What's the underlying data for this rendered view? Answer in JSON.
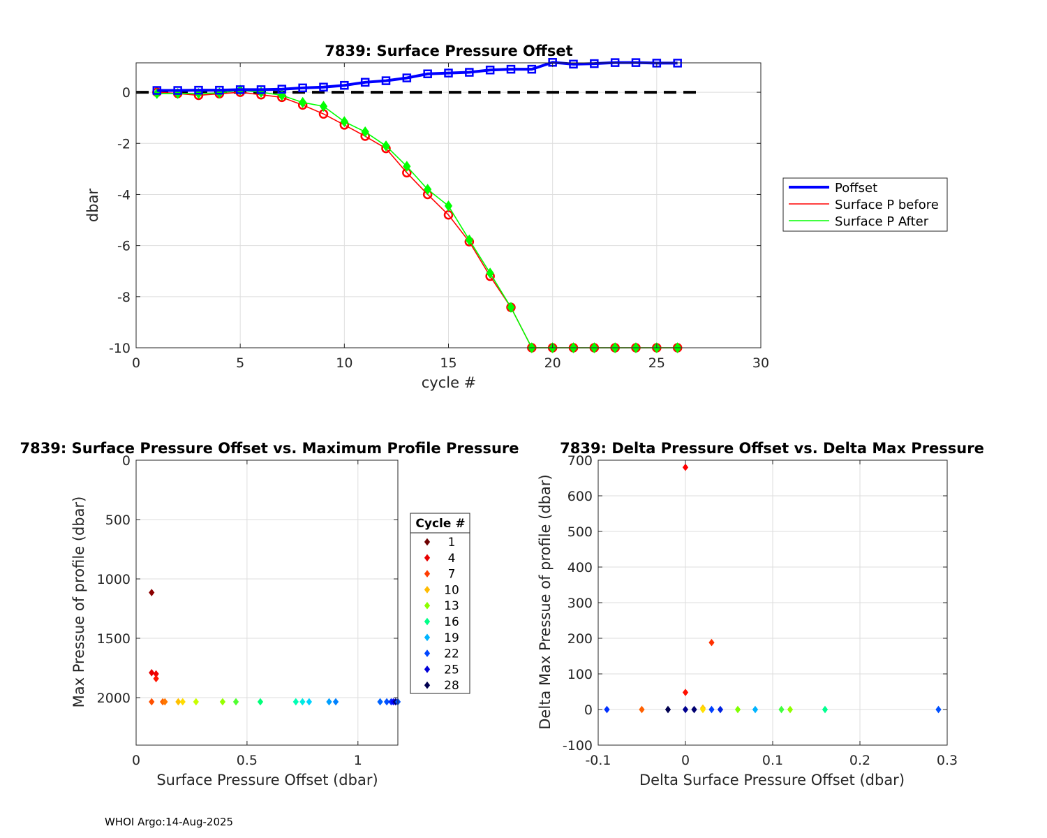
{
  "footer": "WHOI Argo:14-Aug-2025",
  "chart_data": [
    {
      "type": "line",
      "title": "7839: Surface Pressure Offset",
      "xlabel": "cycle #",
      "ylabel": "dbar",
      "xlim": [
        0,
        30
      ],
      "ylim": [
        -10,
        1.15
      ],
      "xticks": [
        "0",
        "5",
        "10",
        "15",
        "20",
        "25",
        "30"
      ],
      "yticks": [
        "-10",
        "-8",
        "-6",
        "-4",
        "-2",
        "0"
      ],
      "grid": true,
      "legend_position": "right",
      "zero_line": {
        "x": [
          0,
          27
        ],
        "y": 0,
        "style": "dashed",
        "color": "#000000"
      },
      "x": [
        1,
        2,
        3,
        4,
        5,
        6,
        7,
        8,
        9,
        10,
        11,
        12,
        13,
        14,
        15,
        16,
        17,
        18,
        19,
        20,
        21,
        22,
        23,
        24,
        25,
        26
      ],
      "series": [
        {
          "name": "Poffset",
          "color": "#0000ff",
          "marker": "square",
          "values": [
            0.07,
            0.07,
            0.08,
            0.08,
            0.1,
            0.1,
            0.12,
            0.17,
            0.2,
            0.27,
            0.39,
            0.45,
            0.56,
            0.72,
            0.75,
            0.78,
            0.87,
            0.9,
            0.9,
            1.17,
            1.1,
            1.12,
            1.16,
            1.16,
            1.14,
            1.14
          ]
        },
        {
          "name": "Surface P before",
          "color": "#ff0000",
          "marker": "circle",
          "values": [
            0.0,
            -0.05,
            -0.12,
            -0.06,
            0.0,
            -0.1,
            -0.2,
            -0.5,
            -0.85,
            -1.28,
            -1.72,
            -2.2,
            -3.15,
            -4.0,
            -4.8,
            -5.85,
            -7.2,
            -8.42,
            -10,
            -10,
            -10,
            -10,
            -10,
            -10,
            -10,
            -10
          ]
        },
        {
          "name": "Surface P After",
          "color": "#00ff00",
          "marker": "diamond",
          "values": [
            -0.05,
            -0.05,
            -0.05,
            -0.03,
            0.08,
            0.0,
            -0.12,
            -0.4,
            -0.55,
            -1.15,
            -1.55,
            -2.1,
            -2.9,
            -3.8,
            -4.45,
            -5.78,
            -7.08,
            -8.42,
            -10,
            -10,
            -10,
            -10,
            -10,
            -10,
            -10,
            -10
          ]
        }
      ]
    },
    {
      "type": "scatter",
      "title": "7839: Surface Pressure Offset vs. Maximum Profile Pressure",
      "xlabel": "Surface Pressure Offset (dbar)",
      "ylabel": "Max Pressue of profile (dbar)",
      "xlim": [
        0,
        1.18
      ],
      "ylim": [
        2400,
        0
      ],
      "y_reversed": true,
      "xticks": [
        "0",
        "0.5",
        "1"
      ],
      "yticks": [
        "0",
        "500",
        "1000",
        "1500",
        "2000"
      ],
      "grid": true,
      "legend_title": "Cycle #",
      "legend_labels": [
        "1",
        "4",
        "7",
        "10",
        "13",
        "16",
        "19",
        "22",
        "25",
        "28"
      ],
      "legend_colors": [
        "#6e0000",
        "#e80000",
        "#ff3c00",
        "#ffbb00",
        "#8cff00",
        "#00ff88",
        "#00b4ff",
        "#0046ff",
        "#0000d8",
        "#000050"
      ],
      "points": [
        {
          "x": 0.07,
          "y": 1115,
          "c": "#8b0000"
        },
        {
          "x": 0.07,
          "y": 1790,
          "c": "#e80000"
        },
        {
          "x": 0.09,
          "y": 1800,
          "c": "#f00000"
        },
        {
          "x": 0.09,
          "y": 1840,
          "c": "#ff1400"
        },
        {
          "x": 0.07,
          "y": 2035,
          "c": "#ff5000"
        },
        {
          "x": 0.12,
          "y": 2035,
          "c": "#ff6400"
        },
        {
          "x": 0.13,
          "y": 2035,
          "c": "#ff7800"
        },
        {
          "x": 0.19,
          "y": 2035,
          "c": "#ffc000"
        },
        {
          "x": 0.21,
          "y": 2035,
          "c": "#ffdc00"
        },
        {
          "x": 0.27,
          "y": 2035,
          "c": "#c8ff00"
        },
        {
          "x": 0.39,
          "y": 2035,
          "c": "#96ff00"
        },
        {
          "x": 0.45,
          "y": 2035,
          "c": "#50ff30"
        },
        {
          "x": 0.56,
          "y": 2035,
          "c": "#00ff78"
        },
        {
          "x": 0.72,
          "y": 2035,
          "c": "#00ffb4"
        },
        {
          "x": 0.75,
          "y": 2035,
          "c": "#00ebe0"
        },
        {
          "x": 0.78,
          "y": 2035,
          "c": "#00d2ff"
        },
        {
          "x": 0.87,
          "y": 2035,
          "c": "#00a0ff"
        },
        {
          "x": 0.9,
          "y": 2035,
          "c": "#0082ff"
        },
        {
          "x": 1.1,
          "y": 2035,
          "c": "#0064ff"
        },
        {
          "x": 1.13,
          "y": 2035,
          "c": "#0050ff"
        },
        {
          "x": 1.15,
          "y": 2035,
          "c": "#0028ff"
        },
        {
          "x": 1.16,
          "y": 2035,
          "c": "#0000ff"
        },
        {
          "x": 1.17,
          "y": 2035,
          "c": "#0000aa"
        },
        {
          "x": 1.17,
          "y": 2035,
          "c": "#000078"
        },
        {
          "x": 1.18,
          "y": 2035,
          "c": "#0050ff"
        }
      ]
    },
    {
      "type": "scatter",
      "title": "7839: Delta Pressure Offset vs. Delta Max Pressure",
      "xlabel": "Delta Surface Pressure Offset (dbar)",
      "ylabel": "Delta Max Pressue of profile (dbar)",
      "xlim": [
        -0.1,
        0.3
      ],
      "ylim": [
        -100,
        700
      ],
      "xticks": [
        "-0.1",
        "0",
        "0.1",
        "0.2",
        "0.3"
      ],
      "yticks": [
        "-100",
        "0",
        "100",
        "200",
        "300",
        "400",
        "500",
        "600",
        "700"
      ],
      "grid": true,
      "points": [
        {
          "x": 0.0,
          "y": 680,
          "c": "#ff0000"
        },
        {
          "x": 0.03,
          "y": 188,
          "c": "#ff3000"
        },
        {
          "x": 0.0,
          "y": 48,
          "c": "#ff1000"
        },
        {
          "x": -0.09,
          "y": 0,
          "c": "#0030ff"
        },
        {
          "x": -0.05,
          "y": 0,
          "c": "#ff6000"
        },
        {
          "x": -0.02,
          "y": 0,
          "c": "#000050"
        },
        {
          "x": 0.0,
          "y": 0,
          "c": "#000090"
        },
        {
          "x": 0.01,
          "y": 0,
          "c": "#000070"
        },
        {
          "x": 0.02,
          "y": 4,
          "c": "#ffc000"
        },
        {
          "x": 0.02,
          "y": 0,
          "c": "#ffe000"
        },
        {
          "x": 0.03,
          "y": 0,
          "c": "#0040ff"
        },
        {
          "x": 0.04,
          "y": 0,
          "c": "#0020e0"
        },
        {
          "x": 0.06,
          "y": 0,
          "c": "#80ff00"
        },
        {
          "x": 0.08,
          "y": 0,
          "c": "#00b4ff"
        },
        {
          "x": 0.11,
          "y": 0,
          "c": "#40ff40"
        },
        {
          "x": 0.12,
          "y": 0,
          "c": "#90ff00"
        },
        {
          "x": 0.16,
          "y": 0,
          "c": "#00ff90"
        },
        {
          "x": 0.29,
          "y": 0,
          "c": "#0050ff"
        }
      ]
    }
  ]
}
